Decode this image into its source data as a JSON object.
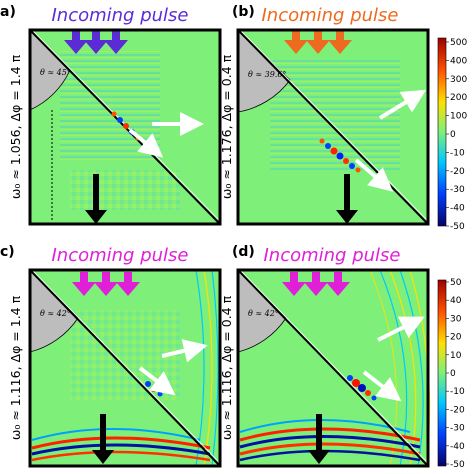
{
  "panels": [
    {
      "label": "a)",
      "title": "Incoming pulse",
      "title_color": "#5b2bd6",
      "arrow_color": "#5b2bd6",
      "angle": "θ ≈ 45°",
      "ylabel": "ω₀ ≈ 1.056, Δφ = 1.4 π",
      "has_colorbar": false
    },
    {
      "label": "(b)",
      "title": "Incoming pulse",
      "title_color": "#ee6a1e",
      "arrow_color": "#ee6a1e",
      "angle": "θ ≈ 39.6°",
      "ylabel": "ω₀ ≈ 1.176, Δφ = 0.4 π",
      "has_colorbar": true,
      "colorbar_ticks": [
        "500",
        "400",
        "300",
        "200",
        "100",
        "0",
        "-10",
        "-20",
        "-30",
        "-40",
        "-50"
      ]
    },
    {
      "label": "c)",
      "title": "Incoming pulse",
      "title_color": "#e020d8",
      "arrow_color": "#e020d8",
      "angle": "θ ≈ 42°",
      "ylabel": "ω₀ ≈ 1.116, Δφ = 1.4 π",
      "has_colorbar": false
    },
    {
      "label": "(d)",
      "title": "Incoming pulse",
      "title_color": "#e020d8",
      "arrow_color": "#e020d8",
      "angle": "θ ≈ 42°",
      "ylabel": "ω₀ ≈ 1.116, Δφ = 0.4 π",
      "has_colorbar": true,
      "colorbar_ticks": [
        "50",
        "40",
        "30",
        "20",
        "10",
        "0",
        "-10",
        "-20",
        "-30",
        "-40",
        "-50"
      ]
    }
  ],
  "colors": {
    "field_background": "#7ef07a",
    "colormap": [
      "#08006a",
      "#0040ff",
      "#00c8ff",
      "#7ef07a",
      "#ffe000",
      "#ff5000",
      "#a00000"
    ]
  }
}
